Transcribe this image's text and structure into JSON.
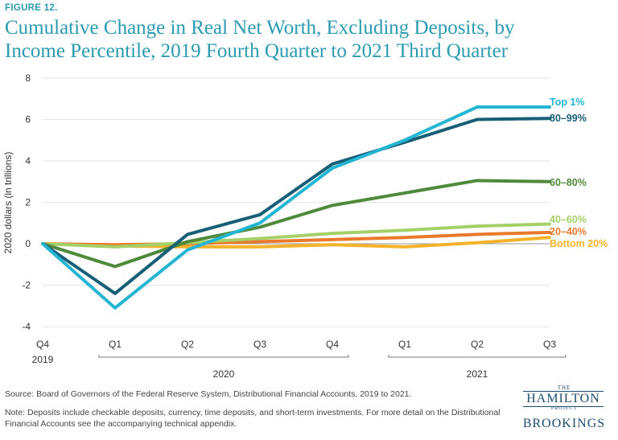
{
  "figure_label": "FIGURE 12.",
  "title": "Cumulative Change in Real Net Worth, Excluding Deposits, by Income Percentile, 2019 Fourth Quarter to 2021 Third Quarter",
  "source": "Source: Board of Governors of the Federal Reserve System, Distributional Financial Accounts, 2019 to 2021.",
  "note": "Note: Deposits include checkable deposits, currency, time deposits, and short-term investments. For more detail on the Distributional Financial Accounts see the accompanying technical appendix.",
  "logo": {
    "the": "THE",
    "name": "HAMILTON",
    "project": "PROJECT",
    "org": "BROOKINGS"
  },
  "chart_data": {
    "type": "line",
    "title": "",
    "xlabel": "",
    "ylabel": "2020 dollars (in trillions)",
    "ylim": [
      -4,
      8
    ],
    "yticks": [
      8,
      6,
      4,
      2,
      0,
      -2,
      -4
    ],
    "x": [
      "Q4 2019",
      "Q1 2020",
      "Q2 2020",
      "Q3 2020",
      "Q4 2020",
      "Q1 2021",
      "Q2 2021",
      "Q3 2021"
    ],
    "tick_labels": [
      "Q4",
      "Q1",
      "Q2",
      "Q3",
      "Q4",
      "Q1",
      "Q2",
      "Q3"
    ],
    "year_labels": {
      "start": "2019",
      "group1": "2020",
      "group2": "2021"
    },
    "series": [
      {
        "name": "Bottom 20%",
        "color": "#f5b32b",
        "values": [
          0,
          -0.1,
          -0.15,
          -0.15,
          -0.05,
          -0.15,
          0.05,
          0.3
        ]
      },
      {
        "name": "20–40%",
        "color": "#ea7a2b",
        "values": [
          0,
          -0.05,
          0.0,
          0.1,
          0.2,
          0.3,
          0.45,
          0.55
        ]
      },
      {
        "name": "40–60%",
        "color": "#a5d068",
        "values": [
          0,
          -0.15,
          0.05,
          0.25,
          0.5,
          0.65,
          0.85,
          0.95
        ]
      },
      {
        "name": "60–80%",
        "color": "#4e8a3a",
        "values": [
          0,
          -1.1,
          0.1,
          0.8,
          1.85,
          2.45,
          3.05,
          3.0
        ]
      },
      {
        "name": "80–99%",
        "color": "#175e77",
        "values": [
          0,
          -2.4,
          0.45,
          1.4,
          3.85,
          4.9,
          6.0,
          6.05
        ]
      },
      {
        "name": "Top 1%",
        "color": "#24b5d3",
        "values": [
          0,
          -3.1,
          -0.3,
          1.0,
          3.65,
          5.0,
          6.6,
          6.6
        ]
      }
    ]
  }
}
